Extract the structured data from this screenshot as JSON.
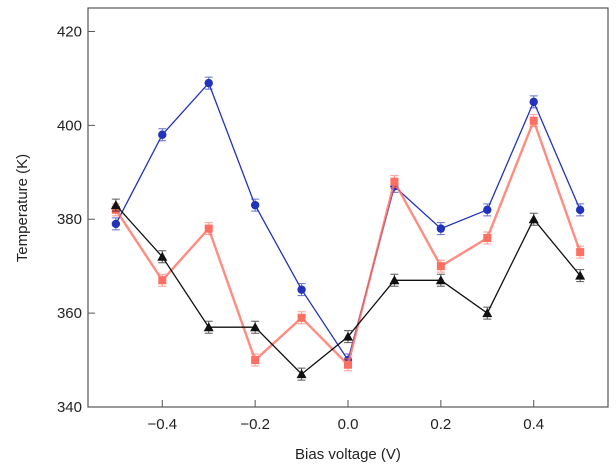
{
  "chart_data": {
    "type": "line",
    "title": "",
    "xlabel": "Bias voltage (V)",
    "ylabel": "Temperature (K)",
    "xlim": [
      -0.56,
      0.56
    ],
    "ylim": [
      340,
      425
    ],
    "grid": false,
    "legend": "none",
    "x_ticks": [
      -0.4,
      -0.2,
      0.0,
      0.2,
      0.4
    ],
    "x_tick_labels": [
      "−0.4",
      "−0.2",
      "0.0",
      "0.2",
      "0.4"
    ],
    "y_ticks": [
      340,
      360,
      380,
      400,
      420
    ],
    "y_tick_labels": [
      "340",
      "360",
      "380",
      "400",
      "420"
    ],
    "x": [
      -0.5,
      -0.4,
      -0.3,
      -0.2,
      -0.1,
      0.0,
      0.1,
      0.2,
      0.3,
      0.4,
      0.5
    ],
    "series": [
      {
        "marker": "circle",
        "color": "#2233bb",
        "values": [
          379,
          398,
          409,
          383,
          365,
          350,
          387,
          378,
          382,
          405,
          382
        ]
      },
      {
        "marker": "square",
        "color": "#ff6f61",
        "values": [
          382,
          367,
          378,
          350,
          359,
          349,
          388,
          370,
          376,
          401,
          373
        ]
      },
      {
        "marker": "triangle",
        "color": "#111111",
        "values": [
          383,
          372,
          357,
          357,
          347,
          355,
          367,
          367,
          360,
          380,
          368
        ]
      }
    ]
  }
}
